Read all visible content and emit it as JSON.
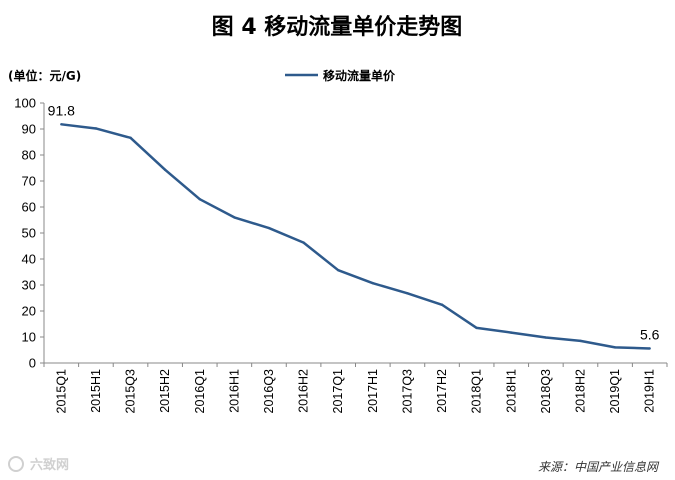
{
  "chart_data": {
    "type": "line",
    "title": "图 4  移动流量单价走势图",
    "unit_label": "(单位：元/G)",
    "ylim": [
      0,
      100
    ],
    "y_ticks": [
      0,
      10,
      20,
      30,
      40,
      50,
      60,
      70,
      80,
      90,
      100
    ],
    "categories": [
      "2015Q1",
      "2015H1",
      "2015Q3",
      "2015H2",
      "2016Q1",
      "2016H1",
      "2016Q3",
      "2016H2",
      "2017Q1",
      "2017H1",
      "2017Q3",
      "2017H2",
      "2018Q1",
      "2018H1",
      "2018Q3",
      "2018H2",
      "2019Q1",
      "2019H1"
    ],
    "series": [
      {
        "name": "移动流量单价",
        "color": "#2e5a8c",
        "values": [
          91.8,
          90.2,
          86.6,
          74.3,
          63.0,
          56.0,
          51.9,
          46.3,
          35.7,
          30.7,
          26.8,
          22.4,
          13.5,
          11.7,
          9.8,
          8.5,
          6.0,
          5.6
        ]
      }
    ],
    "data_labels": [
      {
        "index": 0,
        "text": "91.8"
      },
      {
        "index": 17,
        "text": "5.6"
      }
    ],
    "source": "来源：中国产业信息网",
    "watermark": "六致网"
  }
}
